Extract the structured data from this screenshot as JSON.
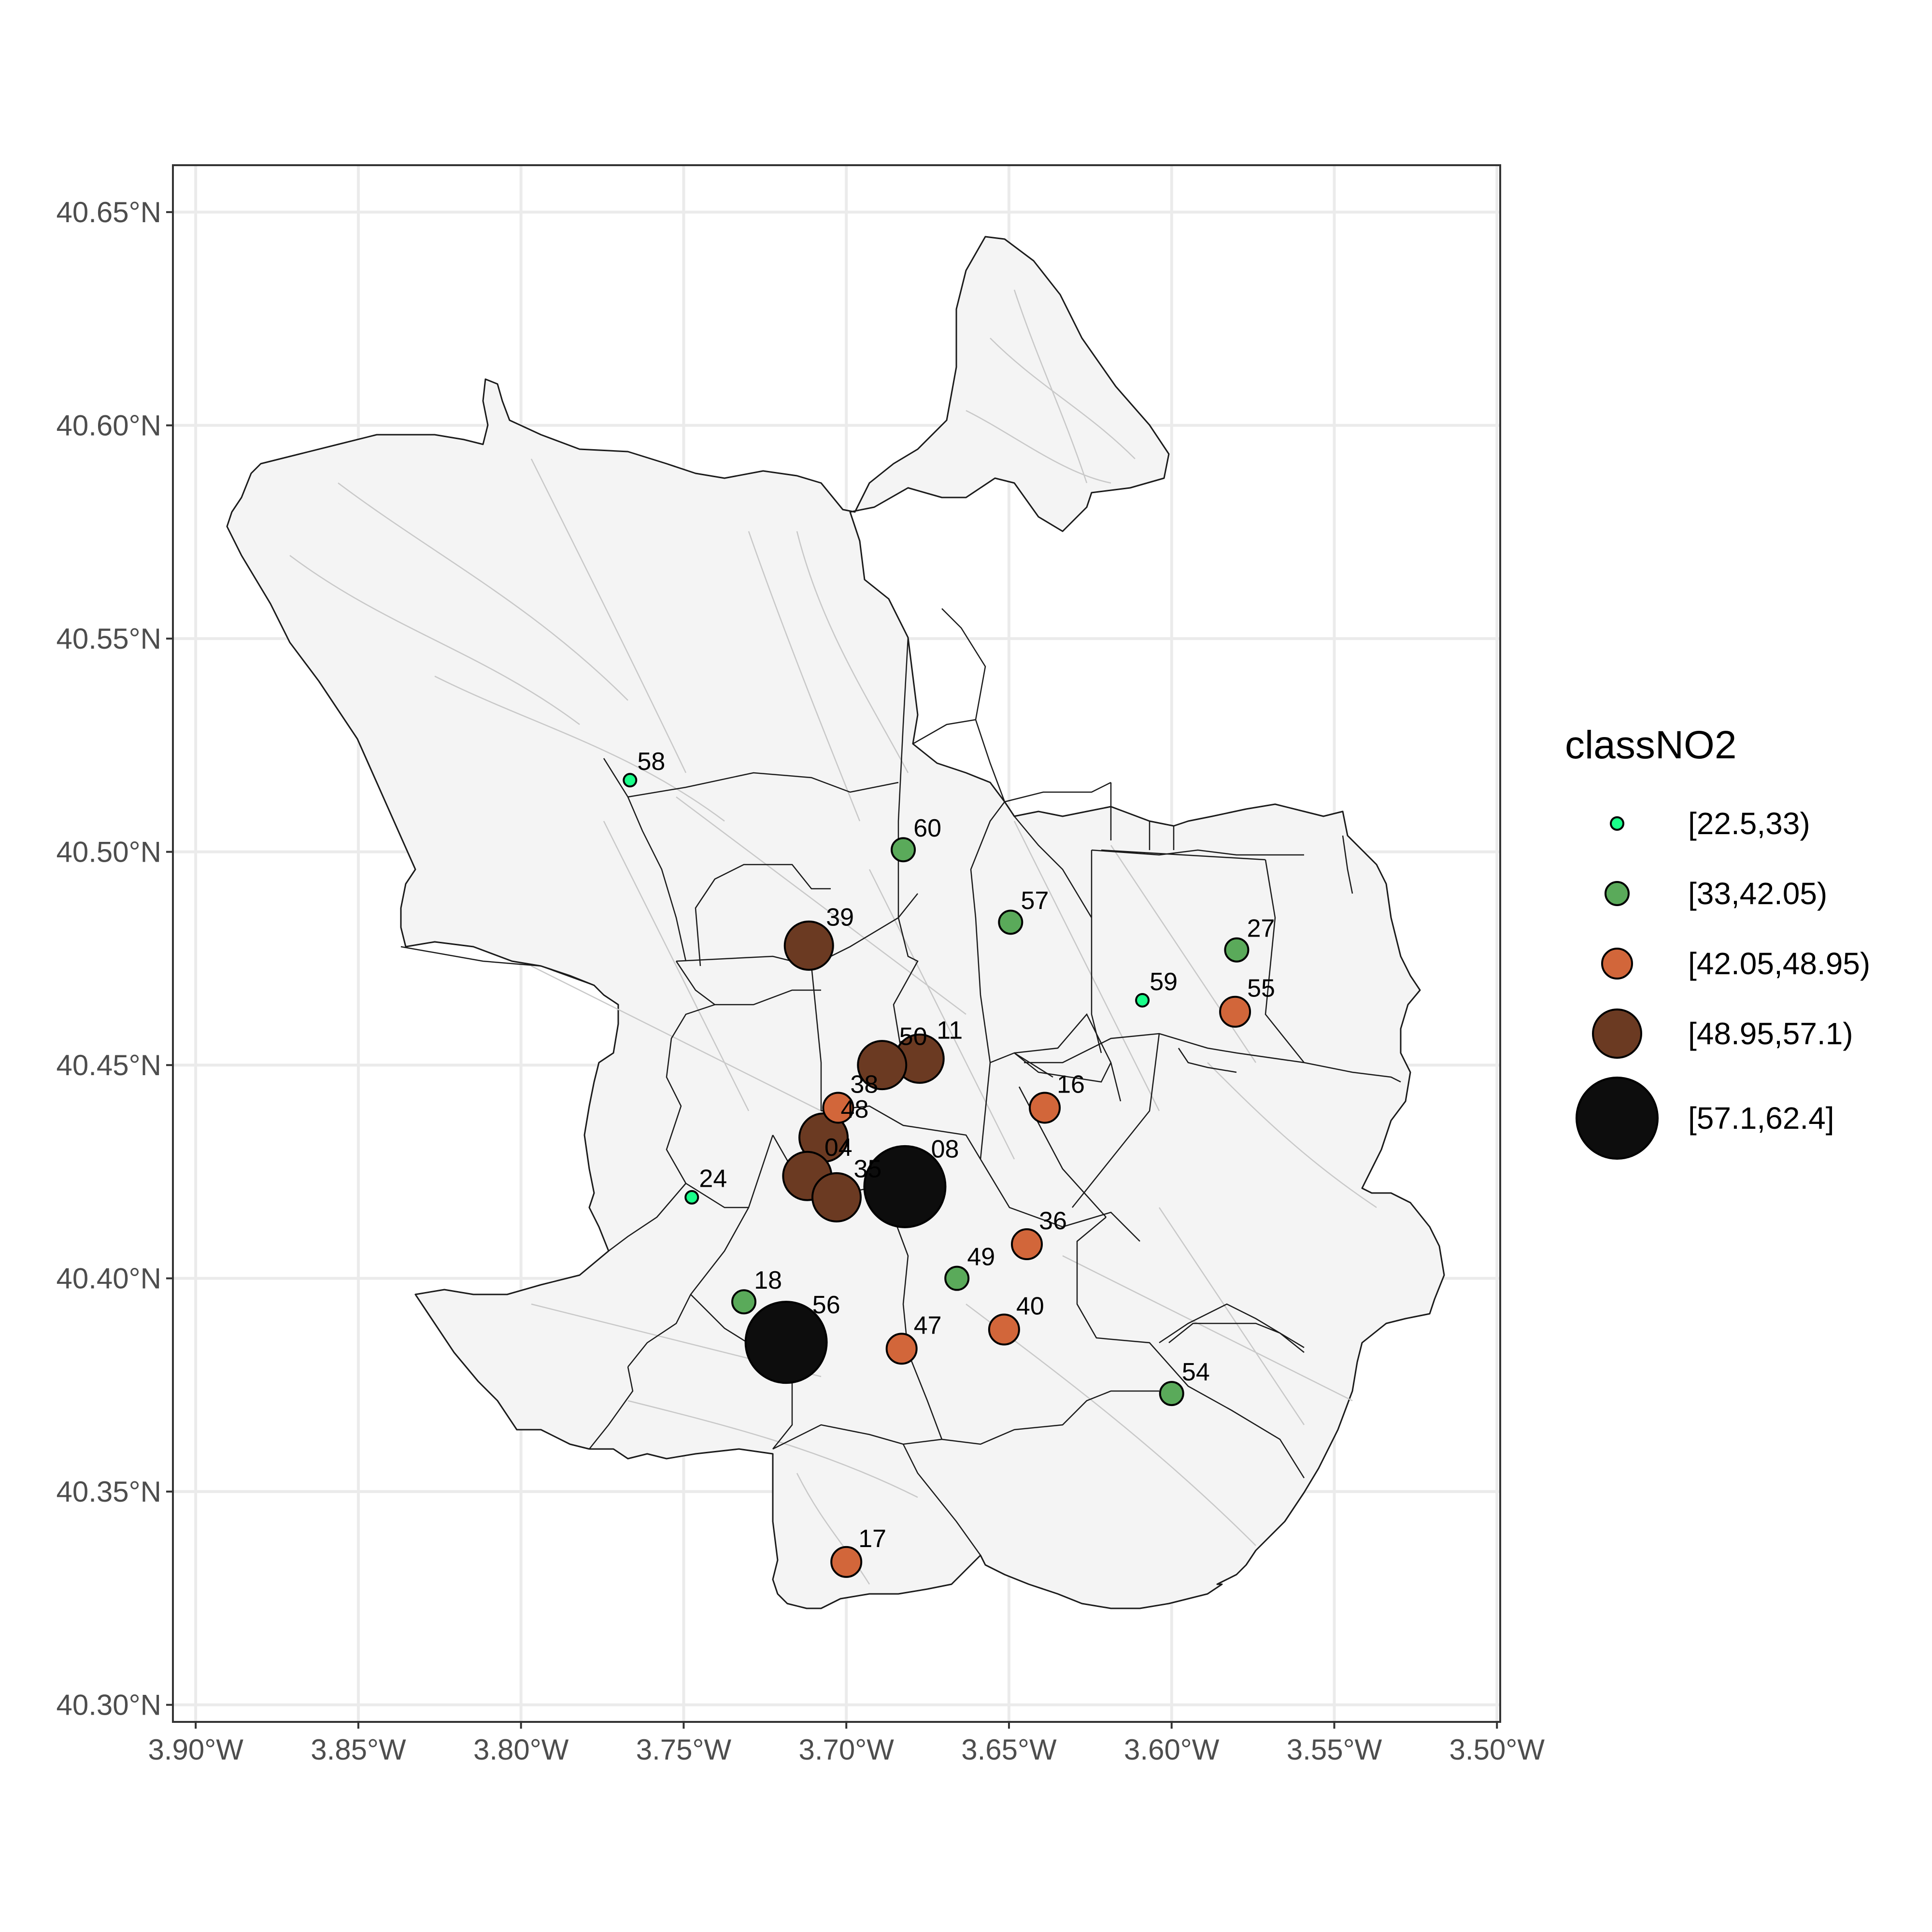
{
  "map": {
    "legend_title": "classNO2",
    "x_ticks": [
      "3.90°W",
      "3.85°W",
      "3.80°W",
      "3.75°W",
      "3.70°W",
      "3.65°W",
      "3.60°W",
      "3.55°W",
      "3.50°W"
    ],
    "y_ticks": [
      "40.65°N",
      "40.60°N",
      "40.55°N",
      "40.50°N",
      "40.45°N",
      "40.40°N",
      "40.35°N",
      "40.30°N"
    ],
    "xlim": [
      -3.907,
      -3.499
    ],
    "ylim": [
      40.296,
      40.661
    ],
    "grid": true,
    "legend_position": "right",
    "panel_background": "#ffffff",
    "grid_color": "#ebebeb",
    "municipality_fill": "#f4f4f4",
    "district_border_color": "#1a1a1a",
    "street_color": "#c8c8c8"
  },
  "legend": [
    {
      "label": "[22.5,33)",
      "color": "#1aff8a",
      "class": 1
    },
    {
      "label": "[33,42.05)",
      "color": "#5aaa5a",
      "class": 2
    },
    {
      "label": "[42.05,48.95)",
      "color": "#d2663a",
      "class": 3
    },
    {
      "label": "[48.95,57.1)",
      "color": "#6b3a22",
      "class": 4
    },
    {
      "label": "[57.1,62.4]",
      "color": "#0d0d0d",
      "class": 5
    }
  ],
  "stations": [
    {
      "id": "58",
      "lon": -3.7665,
      "lat": 40.5168,
      "class": 1
    },
    {
      "id": "60",
      "lon": -3.6825,
      "lat": 40.5005,
      "class": 2
    },
    {
      "id": "57",
      "lon": -3.6495,
      "lat": 40.4835,
      "class": 2
    },
    {
      "id": "27",
      "lon": -3.58,
      "lat": 40.477,
      "class": 2
    },
    {
      "id": "59",
      "lon": -3.609,
      "lat": 40.4652,
      "class": 1
    },
    {
      "id": "55",
      "lon": -3.5805,
      "lat": 40.4625,
      "class": 3
    },
    {
      "id": "39",
      "lon": -3.7115,
      "lat": 40.478,
      "class": 4
    },
    {
      "id": "11",
      "lon": -3.6775,
      "lat": 40.4515,
      "class": 4
    },
    {
      "id": "50",
      "lon": -3.689,
      "lat": 40.45,
      "class": 4
    },
    {
      "id": "16",
      "lon": -3.639,
      "lat": 40.44,
      "class": 3
    },
    {
      "id": "38",
      "lon": -3.7025,
      "lat": 40.44,
      "class": 3
    },
    {
      "id": "48",
      "lon": -3.707,
      "lat": 40.433,
      "class": 4
    },
    {
      "id": "08",
      "lon": -3.682,
      "lat": 40.4215,
      "class": 5
    },
    {
      "id": "24",
      "lon": -3.7475,
      "lat": 40.419,
      "class": 1
    },
    {
      "id": "04",
      "lon": -3.712,
      "lat": 40.424,
      "class": 4
    },
    {
      "id": "35",
      "lon": -3.703,
      "lat": 40.419,
      "class": 4
    },
    {
      "id": "36",
      "lon": -3.6445,
      "lat": 40.408,
      "class": 3
    },
    {
      "id": "49",
      "lon": -3.666,
      "lat": 40.4,
      "class": 2
    },
    {
      "id": "18",
      "lon": -3.7315,
      "lat": 40.3945,
      "class": 2
    },
    {
      "id": "40",
      "lon": -3.6515,
      "lat": 40.388,
      "class": 3
    },
    {
      "id": "47",
      "lon": -3.683,
      "lat": 40.3835,
      "class": 3
    },
    {
      "id": "56",
      "lon": -3.7185,
      "lat": 40.385,
      "class": 5
    },
    {
      "id": "54",
      "lon": -3.6,
      "lat": 40.373,
      "class": 2
    },
    {
      "id": "17",
      "lon": -3.7,
      "lat": 40.3335,
      "class": 3
    }
  ]
}
